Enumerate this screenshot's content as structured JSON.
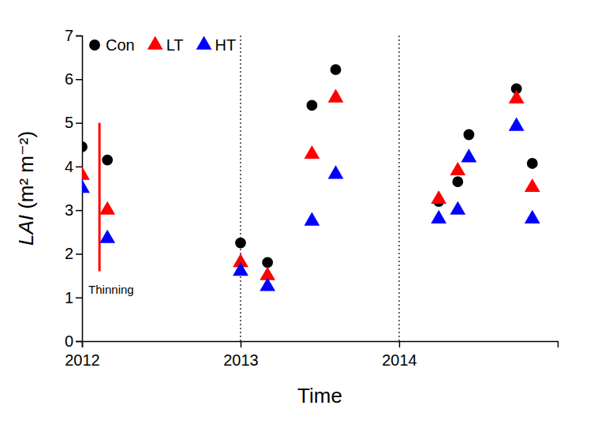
{
  "chart_data": {
    "type": "scatter",
    "x_label": "Time",
    "y_label": "LAI (m² m⁻²)",
    "x": [
      2012.0,
      2012.16,
      2013.0,
      2013.17,
      2013.45,
      2013.6,
      2014.25,
      2014.37,
      2014.44,
      2014.74,
      2014.84
    ],
    "series": [
      {
        "name": "Con",
        "color": "#000000",
        "marker": "circle",
        "values": [
          4.45,
          4.15,
          2.25,
          1.8,
          5.4,
          6.22,
          3.2,
          3.65,
          4.73,
          5.78,
          4.07
        ]
      },
      {
        "name": "LT",
        "color": "#ff0000",
        "marker": "triangle",
        "values": [
          3.8,
          3.0,
          1.8,
          1.5,
          4.28,
          5.57,
          3.25,
          3.9,
          null,
          5.55,
          3.52
        ]
      },
      {
        "name": "HT",
        "color": "#0000ff",
        "marker": "triangle",
        "values": [
          3.5,
          2.35,
          1.6,
          1.25,
          2.75,
          3.82,
          2.8,
          3.0,
          4.2,
          4.92,
          2.8
        ]
      }
    ],
    "xlim": [
      2012,
      2015
    ],
    "xticks": [
      2012,
      2013,
      2014
    ],
    "ylim": [
      0,
      7
    ],
    "yticks": [
      0,
      1,
      2,
      3,
      4,
      5,
      6,
      7
    ],
    "reference_lines": [
      2013,
      2014
    ],
    "annotations": [
      {
        "text": "Thinning",
        "x": 2012.11,
        "y_from": 1.6,
        "y_to": 5.0,
        "color": "#ff0000"
      }
    ],
    "legend": "upper left",
    "grid": false
  }
}
